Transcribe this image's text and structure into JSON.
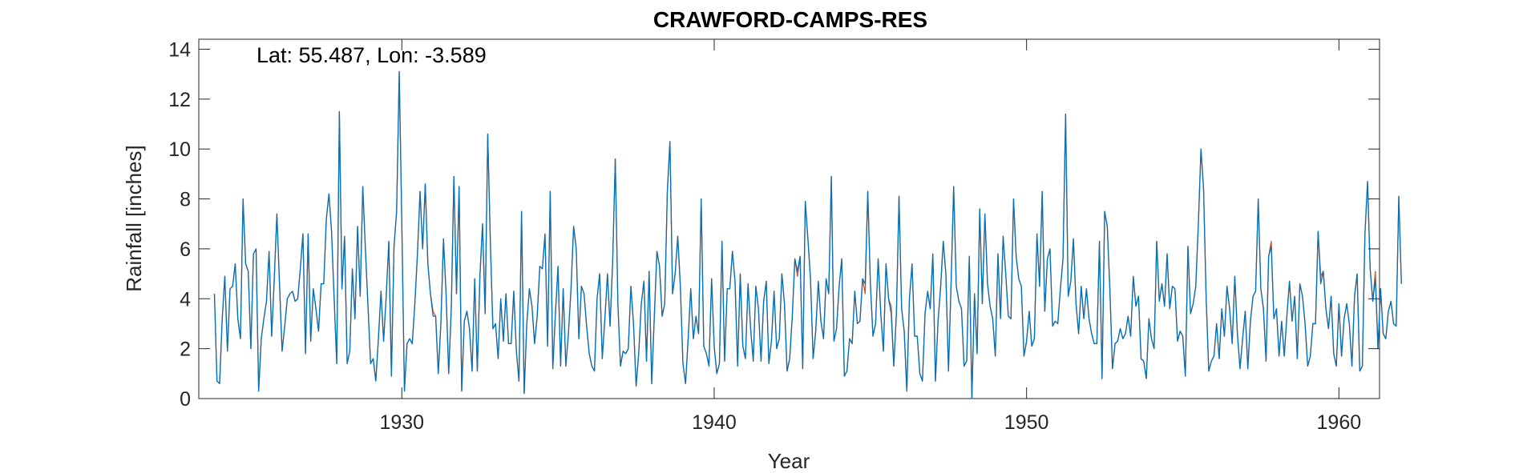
{
  "chart_data": {
    "type": "line",
    "title": "CRAWFORD-CAMPS-RES",
    "xlabel": "Year",
    "ylabel": "Rainfall [inches]",
    "annotation": "Lat: 55.487, Lon: -3.589",
    "xlim": [
      1923.5,
      1961.3
    ],
    "ylim": [
      0,
      14.4
    ],
    "xticks": [
      1930,
      1940,
      1950,
      1960
    ],
    "yticks": [
      0,
      2,
      4,
      6,
      8,
      10,
      12,
      14
    ],
    "grid": false,
    "start_year": 1924,
    "series": [
      {
        "color": "#d95319",
        "values": [
          4.2,
          0.7,
          0.6,
          3.2,
          4.9,
          1.9,
          4.4,
          4.5,
          5.4,
          3.2,
          2.4,
          8.0,
          5.4,
          5.1,
          2.0,
          5.8,
          6.0,
          0.3,
          2.4,
          3.2,
          3.9,
          5.9,
          2.5,
          4.8,
          7.4,
          4.6,
          1.9,
          2.9,
          4.0,
          4.2,
          4.3,
          3.9,
          4.0,
          5.2,
          6.6,
          1.8,
          6.6,
          2.3,
          4.4,
          3.6,
          2.7,
          4.6,
          4.6,
          7.2,
          8.2,
          6.7,
          4.0,
          1.4,
          11.5,
          4.4,
          6.5,
          1.4,
          1.9,
          5.2,
          3.2,
          6.9,
          4.1,
          8.5,
          6.0,
          3.7,
          1.4,
          1.6,
          0.7,
          2.4,
          4.3,
          2.3,
          4.1,
          6.3,
          0.9,
          6.1,
          7.5,
          13.1,
          7.0,
          0.3,
          2.2,
          2.4,
          2.2,
          3.8,
          5.8,
          8.3,
          6.0,
          8.6,
          5.4,
          4.2,
          3.5,
          3.3,
          1.0,
          3.0,
          6.4,
          4.2,
          1.0,
          3.6,
          8.9,
          4.2,
          8.5,
          0.3,
          3.1,
          3.5,
          2.8,
          1.1,
          4.8,
          1.1,
          4.9,
          7.0,
          3.4,
          10.6,
          6.3,
          2.8,
          3.0,
          1.6,
          4.0,
          2.3,
          4.2,
          2.2,
          2.2,
          4.3,
          1.9,
          0.7,
          7.5,
          0.2,
          3.0,
          4.4,
          3.7,
          2.2,
          3.3,
          5.3,
          5.2,
          6.6,
          2.1,
          8.3,
          1.2,
          3.4,
          5.3,
          1.3,
          4.4,
          1.3,
          2.6,
          4.4,
          6.9,
          6.0,
          2.4,
          4.5,
          4.2,
          2.9,
          1.8,
          1.3,
          1.1,
          4.0,
          5.0,
          1.6,
          3.2,
          5.0,
          2.9,
          5.5,
          9.6,
          3.8,
          1.3,
          1.9,
          1.8,
          2.0,
          4.5,
          3.0,
          0.5,
          1.8,
          3.8,
          4.7,
          1.5,
          5.1,
          0.6,
          3.3,
          5.9,
          5.3,
          3.3,
          3.8,
          8.3,
          10.3,
          4.2,
          5.0,
          6.5,
          4.5,
          1.4,
          0.6,
          2.4,
          4.4,
          2.4,
          3.3,
          2.6,
          8.0,
          2.1,
          1.8,
          1.4,
          4.8,
          2.1,
          1.0,
          1.4,
          6.3,
          1.5,
          4.4,
          4.4,
          5.9,
          4.7,
          1.3,
          5.0,
          2.1,
          1.6,
          4.6,
          2.8,
          1.5,
          4.5,
          3.6,
          1.5,
          3.9,
          4.7,
          1.4,
          2.3,
          4.3,
          2.0,
          2.4,
          5.0,
          3.8,
          1.1,
          1.6,
          3.3,
          5.6,
          4.9,
          5.7,
          1.2,
          7.9,
          6.4,
          4.8,
          1.6,
          2.7,
          4.7,
          3.1,
          2.4,
          4.8,
          4.2,
          8.9,
          2.3,
          2.8,
          4.5,
          5.6,
          0.9,
          1.1,
          2.4,
          2.2,
          4.3,
          3.0,
          3.1,
          4.8,
          4.2,
          8.3,
          4.6,
          2.5,
          3.0,
          5.6,
          3.4,
          1.9,
          5.4,
          4.0,
          3.7,
          1.3,
          3.4,
          8.1,
          3.6,
          2.7,
          0.3,
          4.0,
          5.4,
          2.5,
          2.5,
          1.0,
          0.7,
          3.4,
          4.3,
          3.6,
          5.8,
          0.7,
          3.1,
          4.5,
          6.3,
          5.0,
          1.1,
          4.6,
          8.5,
          4.5,
          3.9,
          3.6,
          1.3,
          1.5,
          5.7,
          0.0,
          4.2,
          1.8,
          7.6,
          3.8,
          7.4,
          4.6,
          3.7,
          3.2,
          1.7,
          5.8,
          3.2,
          6.5,
          5.0,
          3.3,
          3.2,
          8.0,
          5.7,
          4.8,
          4.5,
          1.7,
          2.3,
          3.5,
          2.1,
          2.4,
          6.6,
          4.5,
          8.3,
          3.5,
          5.6,
          6.0,
          2.9,
          3.1,
          3.0,
          4.4,
          5.6,
          11.4,
          4.1,
          4.7,
          6.4,
          3.8,
          2.6,
          4.5,
          3.2,
          4.4,
          3.2,
          2.6,
          2.2,
          2.2,
          6.3,
          0.8,
          7.5,
          6.9,
          4.4,
          1.2,
          2.2,
          2.3,
          2.8,
          2.4,
          2.6,
          3.3,
          2.5,
          4.9,
          3.7,
          4.1,
          1.6,
          1.5,
          0.8,
          3.2,
          2.4,
          2.0,
          6.3,
          3.9,
          4.6,
          3.7,
          5.8,
          3.6,
          4.5,
          4.4,
          2.3,
          2.7,
          2.5,
          0.9,
          6.1,
          3.4,
          3.8,
          4.5,
          7.0,
          10.0,
          8.4,
          4.0,
          1.1,
          1.5,
          1.7,
          3.0,
          1.6,
          3.6,
          2.5,
          4.5,
          3.6,
          2.2,
          4.9,
          2.6,
          1.2,
          2.4,
          3.5,
          1.2,
          3.1,
          4.1,
          4.3,
          8.0,
          4.4,
          3.6,
          1.5,
          5.7,
          6.3,
          3.2,
          3.6,
          1.7,
          3.1,
          1.7,
          3.3,
          4.7,
          3.1,
          4.1,
          1.6,
          4.6,
          4.1,
          3.0,
          1.3,
          1.7,
          3.0,
          3.0,
          6.7,
          4.9,
          5.1,
          3.6,
          2.8,
          4.1,
          1.8,
          1.3,
          3.8,
          1.7,
          3.2,
          3.8,
          3.0,
          1.3,
          4.1,
          5.0,
          1.1,
          1.3,
          6.6,
          8.7,
          5.2,
          3.9,
          5.1,
          2.0,
          4.4,
          2.6,
          2.4,
          3.5,
          3.9,
          3.0,
          2.9,
          8.1,
          4.6
        ]
      },
      {
        "color": "#0072bd",
        "values": [
          4.2,
          0.7,
          0.6,
          3.2,
          4.9,
          1.9,
          4.4,
          4.5,
          5.4,
          3.2,
          2.4,
          8.0,
          5.4,
          5.1,
          2.0,
          5.8,
          6.0,
          0.3,
          2.4,
          3.2,
          3.9,
          5.9,
          2.5,
          4.8,
          7.4,
          4.6,
          1.9,
          2.9,
          4.0,
          4.2,
          4.3,
          3.9,
          4.0,
          5.2,
          6.6,
          1.8,
          6.6,
          2.3,
          4.4,
          3.6,
          2.7,
          4.6,
          4.6,
          7.2,
          8.2,
          6.7,
          4.0,
          1.4,
          11.5,
          4.4,
          6.5,
          1.4,
          1.9,
          5.2,
          3.2,
          6.9,
          4.1,
          8.5,
          6.0,
          3.7,
          1.4,
          1.6,
          0.7,
          2.4,
          4.3,
          2.3,
          4.1,
          6.3,
          0.9,
          6.1,
          7.5,
          13.1,
          7.0,
          0.3,
          2.2,
          2.4,
          2.2,
          3.8,
          5.8,
          8.3,
          6.0,
          8.6,
          5.4,
          4.2,
          3.3,
          3.3,
          1.0,
          3.0,
          6.4,
          4.2,
          1.0,
          3.6,
          8.9,
          4.2,
          8.5,
          0.3,
          3.1,
          3.5,
          2.8,
          1.1,
          4.8,
          1.1,
          4.9,
          7.0,
          3.4,
          10.6,
          6.3,
          2.8,
          3.0,
          1.6,
          4.0,
          2.3,
          4.2,
          2.2,
          2.2,
          4.3,
          1.9,
          0.7,
          7.5,
          0.2,
          3.0,
          4.4,
          3.7,
          2.2,
          3.3,
          5.3,
          5.2,
          6.6,
          2.1,
          8.3,
          1.2,
          3.4,
          5.3,
          1.3,
          4.4,
          1.3,
          2.6,
          4.4,
          6.9,
          6.0,
          2.4,
          4.5,
          4.2,
          2.9,
          1.8,
          1.3,
          1.1,
          4.0,
          5.0,
          1.6,
          3.2,
          5.0,
          2.9,
          5.5,
          9.6,
          3.8,
          1.3,
          1.9,
          1.8,
          2.0,
          4.5,
          3.0,
          0.5,
          1.8,
          3.8,
          4.7,
          1.5,
          5.1,
          0.6,
          3.3,
          5.9,
          5.3,
          3.3,
          3.8,
          8.3,
          10.3,
          4.2,
          5.0,
          6.5,
          4.5,
          1.4,
          0.6,
          2.4,
          4.4,
          2.4,
          3.3,
          2.6,
          8.0,
          2.1,
          1.8,
          1.3,
          4.8,
          2.1,
          1.0,
          1.4,
          6.3,
          1.5,
          4.4,
          4.4,
          5.9,
          4.7,
          1.3,
          5.0,
          2.1,
          1.6,
          4.6,
          2.8,
          1.5,
          4.5,
          3.6,
          1.5,
          3.9,
          4.7,
          1.4,
          2.3,
          4.3,
          2.0,
          2.4,
          5.0,
          3.8,
          1.1,
          1.6,
          3.3,
          5.6,
          5.1,
          5.7,
          1.2,
          7.9,
          6.4,
          4.8,
          1.6,
          2.7,
          4.7,
          3.1,
          2.4,
          4.8,
          4.2,
          8.9,
          2.3,
          2.8,
          4.5,
          5.6,
          0.9,
          1.1,
          2.4,
          2.2,
          4.3,
          3.0,
          3.1,
          4.8,
          4.6,
          8.3,
          4.6,
          2.5,
          3.0,
          5.6,
          3.4,
          1.9,
          5.4,
          4.0,
          3.4,
          1.3,
          3.4,
          8.1,
          3.6,
          2.7,
          0.3,
          4.0,
          5.4,
          2.5,
          2.5,
          1.0,
          0.7,
          3.4,
          4.3,
          3.6,
          5.8,
          0.7,
          3.1,
          4.5,
          6.3,
          5.0,
          1.1,
          4.6,
          8.5,
          4.5,
          3.9,
          3.6,
          1.3,
          1.5,
          5.7,
          0.0,
          4.2,
          1.8,
          7.6,
          3.8,
          7.4,
          4.6,
          3.7,
          3.2,
          1.7,
          5.8,
          3.2,
          6.5,
          5.0,
          3.3,
          3.2,
          8.0,
          5.7,
          4.8,
          4.5,
          1.7,
          2.3,
          3.5,
          2.1,
          2.4,
          6.6,
          4.5,
          8.3,
          3.5,
          5.6,
          6.0,
          2.9,
          3.1,
          3.0,
          4.4,
          5.6,
          11.4,
          4.1,
          4.7,
          6.4,
          3.8,
          2.6,
          4.5,
          3.2,
          4.4,
          3.2,
          2.6,
          2.2,
          2.2,
          6.3,
          0.8,
          7.5,
          6.9,
          4.4,
          1.2,
          2.2,
          2.3,
          2.8,
          2.4,
          2.6,
          3.3,
          2.5,
          4.9,
          3.7,
          4.1,
          1.6,
          1.5,
          0.8,
          3.2,
          2.4,
          2.0,
          6.3,
          3.9,
          4.6,
          3.7,
          5.8,
          3.6,
          4.5,
          4.4,
          2.3,
          2.7,
          2.5,
          0.9,
          6.1,
          3.4,
          3.8,
          4.5,
          7.0,
          10.0,
          8.4,
          4.0,
          1.1,
          1.5,
          1.7,
          3.0,
          1.6,
          3.6,
          2.5,
          4.5,
          3.6,
          2.2,
          4.9,
          2.6,
          1.2,
          2.4,
          3.5,
          1.2,
          3.1,
          4.1,
          4.3,
          8.0,
          4.4,
          3.6,
          1.5,
          5.7,
          6.1,
          3.2,
          3.6,
          1.7,
          3.1,
          1.7,
          3.3,
          4.7,
          3.1,
          4.1,
          1.6,
          4.6,
          4.1,
          3.0,
          1.3,
          1.7,
          3.0,
          3.0,
          6.7,
          4.6,
          5.1,
          3.6,
          2.8,
          4.1,
          1.8,
          1.3,
          3.8,
          1.7,
          3.2,
          3.8,
          3.0,
          1.3,
          4.1,
          5.0,
          1.1,
          1.3,
          6.6,
          8.7,
          5.2,
          3.9,
          4.8,
          2.0,
          4.4,
          2.6,
          2.4,
          3.5,
          3.9,
          3.0,
          2.9,
          8.1,
          4.6
        ]
      }
    ]
  }
}
